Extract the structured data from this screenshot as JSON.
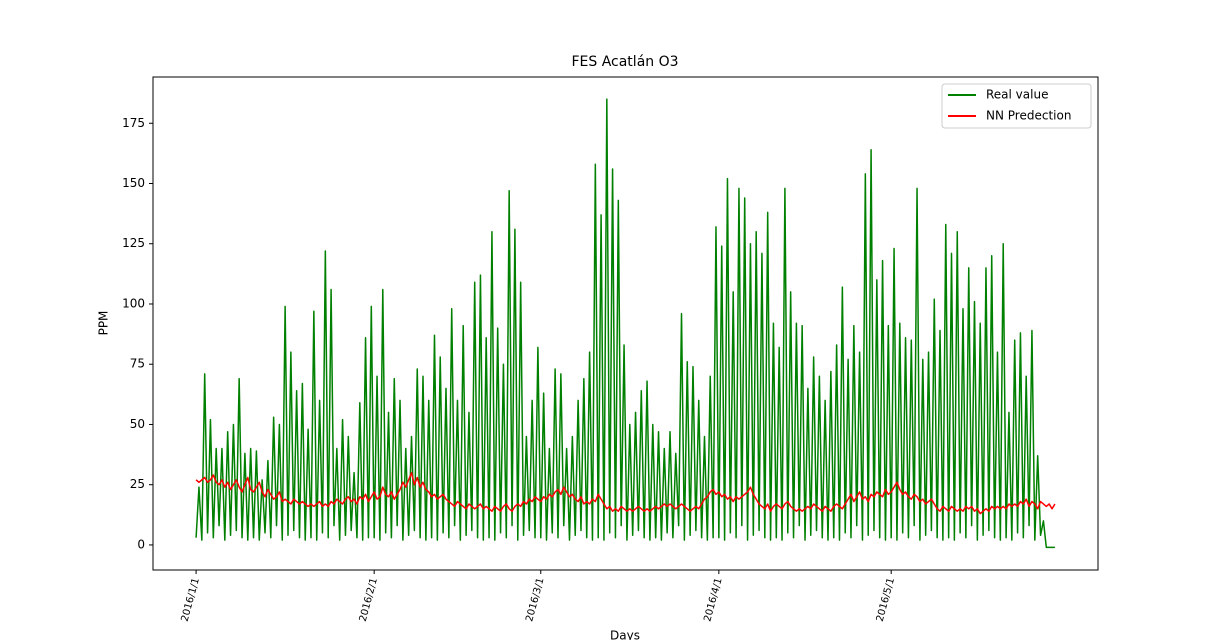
{
  "chart_data": {
    "type": "line",
    "title": "FES Acatlán O3",
    "xlabel": "Days",
    "ylabel": "PPM",
    "xlim": [
      -7.5,
      157
    ],
    "ylim": [
      -10.4,
      194.2
    ],
    "xticks": [
      {
        "value": 0,
        "label": "2016/1/1"
      },
      {
        "value": 31,
        "label": "2016/2/1"
      },
      {
        "value": 60,
        "label": "2016/3/1"
      },
      {
        "value": 91,
        "label": "2016/4/1"
      },
      {
        "value": 121,
        "label": "2016/5/1"
      }
    ],
    "yticks": [
      0,
      25,
      50,
      75,
      100,
      125,
      150,
      175
    ],
    "legend": "upper right",
    "x": [
      0,
      0.5,
      1,
      1.5,
      2,
      2.5,
      3,
      3.5,
      4,
      4.5,
      5,
      5.5,
      6,
      6.5,
      7,
      7.5,
      8,
      8.5,
      9,
      9.5,
      10,
      10.5,
      11,
      11.5,
      12,
      12.5,
      13,
      13.5,
      14,
      14.5,
      15,
      15.5,
      16,
      16.5,
      17,
      17.5,
      18,
      18.5,
      19,
      19.5,
      20,
      20.5,
      21,
      21.5,
      22,
      22.5,
      23,
      23.5,
      24,
      24.5,
      25,
      25.5,
      26,
      26.5,
      27,
      27.5,
      28,
      28.5,
      29,
      29.5,
      30,
      30.5,
      31,
      31.5,
      32,
      32.5,
      33,
      33.5,
      34,
      34.5,
      35,
      35.5,
      36,
      36.5,
      37,
      37.5,
      38,
      38.5,
      39,
      39.5,
      40,
      40.5,
      41,
      41.5,
      42,
      42.5,
      43,
      43.5,
      44,
      44.5,
      45,
      45.5,
      46,
      46.5,
      47,
      47.5,
      48,
      48.5,
      49,
      49.5,
      50,
      50.5,
      51,
      51.5,
      52,
      52.5,
      53,
      53.5,
      54,
      54.5,
      55,
      55.5,
      56,
      56.5,
      57,
      57.5,
      58,
      58.5,
      59,
      59.5,
      60,
      60.5,
      61,
      61.5,
      62,
      62.5,
      63,
      63.5,
      64,
      64.5,
      65,
      65.5,
      66,
      66.5,
      67,
      67.5,
      68,
      68.5,
      69,
      69.5,
      70,
      70.5,
      71,
      71.5,
      72,
      72.5,
      73,
      73.5,
      74,
      74.5,
      75,
      75.5,
      76,
      76.5,
      77,
      77.5,
      78,
      78.5,
      79,
      79.5,
      80,
      80.5,
      81,
      81.5,
      82,
      82.5,
      83,
      83.5,
      84,
      84.5,
      85,
      85.5,
      86,
      86.5,
      87,
      87.5,
      88,
      88.5,
      89,
      89.5,
      90,
      90.5,
      91,
      91.5,
      92,
      92.5,
      93,
      93.5,
      94,
      94.5,
      95,
      95.5,
      96,
      96.5,
      97,
      97.5,
      98,
      98.5,
      99,
      99.5,
      100,
      100.5,
      101,
      101.5,
      102,
      102.5,
      103,
      103.5,
      104,
      104.5,
      105,
      105.5,
      106,
      106.5,
      107,
      107.5,
      108,
      108.5,
      109,
      109.5,
      110,
      110.5,
      111,
      111.5,
      112,
      112.5,
      113,
      113.5,
      114,
      114.5,
      115,
      115.5,
      116,
      116.5,
      117,
      117.5,
      118,
      118.5,
      119,
      119.5,
      120,
      120.5,
      121,
      121.5,
      122,
      122.5,
      123,
      123.5,
      124,
      124.5,
      125,
      125.5,
      126,
      126.5,
      127,
      127.5,
      128,
      128.5,
      129,
      129.5,
      130,
      130.5,
      131,
      131.5,
      132,
      132.5,
      133,
      133.5,
      134,
      134.5,
      135,
      135.5,
      136,
      136.5,
      137,
      137.5,
      138,
      138.5,
      139,
      139.5,
      140,
      140.5,
      141,
      141.5,
      142,
      142.5,
      143,
      143.5,
      144,
      144.5,
      145,
      145.5,
      146,
      146.5,
      147,
      147.5,
      148,
      148.5,
      149,
      149.5
    ],
    "series": [
      {
        "name": "Real value",
        "color": "#008000",
        "values": [
          3,
          24,
          2,
          71,
          5,
          52,
          3,
          40,
          8,
          40,
          2,
          47,
          4,
          50,
          6,
          69,
          3,
          38,
          2,
          40,
          3,
          39,
          2,
          27,
          5,
          35,
          3,
          53,
          8,
          50,
          2,
          99,
          4,
          80,
          6,
          64,
          3,
          67,
          2,
          48,
          3,
          97,
          2,
          60,
          5,
          122,
          3,
          106,
          8,
          40,
          2,
          52,
          4,
          45,
          6,
          30,
          3,
          59,
          2,
          86,
          3,
          99,
          3,
          70,
          2,
          106,
          5,
          55,
          3,
          69,
          8,
          60,
          2,
          40,
          4,
          45,
          6,
          73,
          3,
          70,
          2,
          60,
          3,
          87,
          2,
          78,
          5,
          65,
          3,
          98,
          8,
          60,
          2,
          91,
          4,
          55,
          6,
          109,
          3,
          112,
          2,
          86,
          3,
          130,
          2,
          90,
          5,
          75,
          3,
          147,
          8,
          131,
          2,
          109,
          4,
          45,
          6,
          60,
          3,
          82,
          3,
          63,
          2,
          40,
          5,
          73,
          3,
          71,
          8,
          40,
          2,
          45,
          4,
          60,
          6,
          69,
          3,
          80,
          2,
          158,
          3,
          137,
          2,
          185,
          5,
          156,
          3,
          143,
          8,
          83,
          2,
          50,
          4,
          55,
          6,
          64,
          3,
          68,
          2,
          50,
          3,
          47,
          2,
          40,
          5,
          47,
          3,
          38,
          8,
          96,
          2,
          76,
          4,
          74,
          6,
          60,
          3,
          45,
          2,
          70,
          3,
          132,
          3,
          124,
          2,
          152,
          5,
          105,
          3,
          148,
          8,
          144,
          2,
          125,
          4,
          130,
          6,
          121,
          3,
          138,
          2,
          92,
          3,
          82,
          2,
          148,
          5,
          105,
          3,
          92,
          8,
          91,
          2,
          65,
          4,
          78,
          6,
          70,
          3,
          60,
          2,
          72,
          3,
          83,
          2,
          107,
          5,
          77,
          3,
          91,
          8,
          80,
          2,
          154,
          4,
          164,
          6,
          110,
          3,
          118,
          2,
          91,
          3,
          123,
          2,
          92,
          5,
          86,
          3,
          85,
          8,
          148,
          2,
          77,
          4,
          80,
          6,
          102,
          3,
          89,
          2,
          133,
          3,
          121,
          2,
          130,
          5,
          98,
          3,
          115,
          8,
          101,
          2,
          92,
          4,
          115,
          6,
          120,
          3,
          80,
          2,
          125,
          3,
          55,
          2,
          85,
          5,
          88,
          3,
          70,
          8,
          89,
          2,
          37,
          4,
          10,
          -1,
          -1,
          -1,
          -1
        ]
      },
      {
        "name": "NN Predection",
        "color": "#ff0000",
        "values": [
          27,
          26,
          27,
          28,
          26,
          27,
          29,
          26,
          25,
          27,
          24,
          26,
          23,
          25,
          27,
          24,
          22,
          25,
          28,
          23,
          22,
          24,
          26,
          22,
          20,
          23,
          21,
          19,
          20,
          22,
          18,
          19,
          18,
          17,
          19,
          18,
          17,
          18,
          17,
          16,
          17,
          16,
          17,
          18,
          16,
          17,
          16,
          18,
          17,
          19,
          18,
          17,
          19,
          20,
          18,
          19,
          17,
          20,
          19,
          21,
          18,
          20,
          22,
          19,
          20,
          24,
          21,
          20,
          22,
          19,
          21,
          23,
          26,
          24,
          27,
          30,
          25,
          28,
          24,
          26,
          23,
          22,
          20,
          21,
          19,
          20,
          21,
          19,
          18,
          17,
          16,
          18,
          17,
          16,
          15,
          17,
          16,
          15,
          16,
          17,
          15,
          16,
          15,
          14,
          16,
          15,
          14,
          16,
          17,
          15,
          14,
          16,
          17,
          16,
          18,
          17,
          19,
          18,
          20,
          19,
          18,
          20,
          19,
          21,
          20,
          22,
          23,
          21,
          24,
          22,
          20,
          21,
          19,
          18,
          20,
          17,
          18,
          17,
          19,
          18,
          21,
          19,
          17,
          15,
          16,
          14,
          15,
          14,
          16,
          15,
          14,
          15,
          14,
          15,
          16,
          15,
          14,
          15,
          14,
          15,
          16,
          15,
          16,
          17,
          16,
          17,
          16,
          15,
          16,
          17,
          16,
          15,
          14,
          15,
          16,
          15,
          17,
          19,
          20,
          22,
          23,
          21,
          22,
          20,
          21,
          19,
          20,
          18,
          20,
          19,
          20,
          21,
          22,
          24,
          21,
          19,
          17,
          16,
          15,
          17,
          14,
          16,
          17,
          16,
          15,
          17,
          18,
          16,
          15,
          14,
          15,
          14,
          15,
          16,
          15,
          17,
          16,
          15,
          14,
          16,
          15,
          14,
          16,
          17,
          16,
          15,
          17,
          19,
          21,
          18,
          20,
          22,
          19,
          20,
          18,
          21,
          20,
          22,
          21,
          20,
          23,
          21,
          22,
          24,
          26,
          23,
          21,
          22,
          20,
          19,
          21,
          20,
          18,
          19,
          17,
          18,
          19,
          17,
          15,
          14,
          16,
          15,
          14,
          16,
          15,
          14,
          15,
          14,
          16,
          15,
          16,
          14,
          15,
          13,
          14,
          15,
          14,
          16,
          15,
          16,
          15,
          16,
          15,
          17,
          16,
          17,
          16,
          18,
          17,
          19,
          16,
          18,
          17,
          15,
          18,
          17,
          16,
          17,
          15,
          17
        ]
      }
    ]
  }
}
